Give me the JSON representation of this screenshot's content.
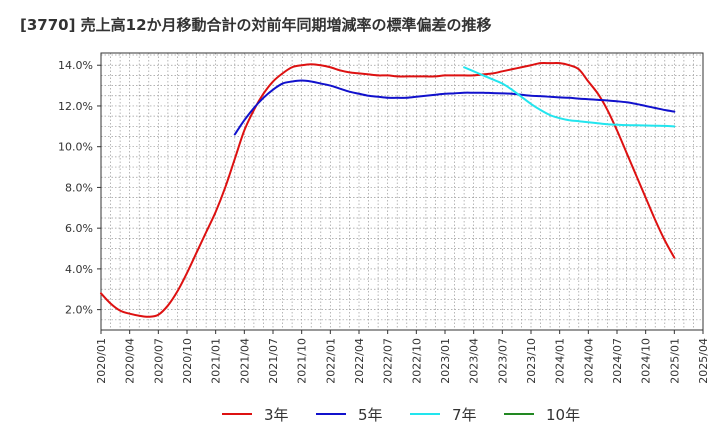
{
  "chart_data": {
    "type": "line",
    "title": "[3770]  売上高12か月移動合計の対前年同期増減率の標準偏差の推移",
    "xlabel": "",
    "ylabel": "",
    "x_range": [
      "2020-01",
      "2025-04"
    ],
    "ylim": [
      1.0,
      14.6
    ],
    "y_ticks": [
      "2.0%",
      "4.0%",
      "6.0%",
      "8.0%",
      "10.0%",
      "12.0%",
      "14.0%"
    ],
    "y_tick_values": [
      2,
      4,
      6,
      8,
      10,
      12,
      14
    ],
    "x_ticks": [
      "2020/01",
      "2020/04",
      "2020/07",
      "2020/10",
      "2021/01",
      "2021/04",
      "2021/07",
      "2021/10",
      "2022/01",
      "2022/04",
      "2022/07",
      "2022/10",
      "2023/01",
      "2023/04",
      "2023/07",
      "2023/10",
      "2024/01",
      "2024/04",
      "2024/07",
      "2024/10",
      "2025/01",
      "2025/04"
    ],
    "grid": true,
    "legend_position": "bottom",
    "series": [
      {
        "name": "3年",
        "color": "#dd1111",
        "points": [
          [
            "2020-01",
            2.8
          ],
          [
            "2020-02",
            2.3
          ],
          [
            "2020-03",
            1.95
          ],
          [
            "2020-04",
            1.8
          ],
          [
            "2020-05",
            1.7
          ],
          [
            "2020-06",
            1.65
          ],
          [
            "2020-07",
            1.75
          ],
          [
            "2020-08",
            2.2
          ],
          [
            "2020-09",
            2.9
          ],
          [
            "2020-10",
            3.8
          ],
          [
            "2020-11",
            4.8
          ],
          [
            "2020-12",
            5.8
          ],
          [
            "2021-01",
            6.8
          ],
          [
            "2021-02",
            8.0
          ],
          [
            "2021-03",
            9.4
          ],
          [
            "2021-04",
            10.8
          ],
          [
            "2021-05",
            11.8
          ],
          [
            "2021-06",
            12.6
          ],
          [
            "2021-07",
            13.2
          ],
          [
            "2021-08",
            13.6
          ],
          [
            "2021-09",
            13.9
          ],
          [
            "2021-10",
            14.0
          ],
          [
            "2021-11",
            14.05
          ],
          [
            "2021-12",
            14.0
          ],
          [
            "2022-01",
            13.9
          ],
          [
            "2022-02",
            13.75
          ],
          [
            "2022-03",
            13.65
          ],
          [
            "2022-04",
            13.6
          ],
          [
            "2022-05",
            13.55
          ],
          [
            "2022-06",
            13.5
          ],
          [
            "2022-07",
            13.5
          ],
          [
            "2022-08",
            13.45
          ],
          [
            "2022-09",
            13.45
          ],
          [
            "2022-10",
            13.45
          ],
          [
            "2022-11",
            13.45
          ],
          [
            "2022-12",
            13.45
          ],
          [
            "2023-01",
            13.5
          ],
          [
            "2023-02",
            13.5
          ],
          [
            "2023-03",
            13.5
          ],
          [
            "2023-04",
            13.5
          ],
          [
            "2023-05",
            13.55
          ],
          [
            "2023-06",
            13.6
          ],
          [
            "2023-07",
            13.7
          ],
          [
            "2023-08",
            13.8
          ],
          [
            "2023-09",
            13.9
          ],
          [
            "2023-10",
            14.0
          ],
          [
            "2023-11",
            14.1
          ],
          [
            "2023-12",
            14.1
          ],
          [
            "2024-01",
            14.1
          ],
          [
            "2024-02",
            14.0
          ],
          [
            "2024-03",
            13.8
          ],
          [
            "2024-04",
            13.2
          ],
          [
            "2024-05",
            12.6
          ],
          [
            "2024-06",
            11.8
          ],
          [
            "2024-07",
            10.8
          ],
          [
            "2024-08",
            9.7
          ],
          [
            "2024-09",
            8.6
          ],
          [
            "2024-10",
            7.5
          ],
          [
            "2024-11",
            6.4
          ],
          [
            "2024-12",
            5.4
          ],
          [
            "2025-01",
            4.55
          ]
        ]
      },
      {
        "name": "5年",
        "color": "#1111cc",
        "points": [
          [
            "2021-03",
            10.6
          ],
          [
            "2021-04",
            11.3
          ],
          [
            "2021-05",
            11.9
          ],
          [
            "2021-06",
            12.4
          ],
          [
            "2021-07",
            12.8
          ],
          [
            "2021-08",
            13.1
          ],
          [
            "2021-09",
            13.2
          ],
          [
            "2021-10",
            13.25
          ],
          [
            "2021-11",
            13.2
          ],
          [
            "2021-12",
            13.1
          ],
          [
            "2022-01",
            13.0
          ],
          [
            "2022-02",
            12.85
          ],
          [
            "2022-03",
            12.7
          ],
          [
            "2022-04",
            12.6
          ],
          [
            "2022-05",
            12.5
          ],
          [
            "2022-06",
            12.45
          ],
          [
            "2022-07",
            12.4
          ],
          [
            "2022-08",
            12.4
          ],
          [
            "2022-09",
            12.4
          ],
          [
            "2022-10",
            12.45
          ],
          [
            "2022-11",
            12.5
          ],
          [
            "2022-12",
            12.55
          ],
          [
            "2023-01",
            12.6
          ],
          [
            "2023-02",
            12.62
          ],
          [
            "2023-03",
            12.65
          ],
          [
            "2023-04",
            12.65
          ],
          [
            "2023-05",
            12.65
          ],
          [
            "2023-06",
            12.63
          ],
          [
            "2023-07",
            12.62
          ],
          [
            "2023-08",
            12.6
          ],
          [
            "2023-09",
            12.55
          ],
          [
            "2023-10",
            12.5
          ],
          [
            "2023-11",
            12.48
          ],
          [
            "2023-12",
            12.45
          ],
          [
            "2024-01",
            12.42
          ],
          [
            "2024-02",
            12.4
          ],
          [
            "2024-03",
            12.36
          ],
          [
            "2024-04",
            12.33
          ],
          [
            "2024-05",
            12.3
          ],
          [
            "2024-06",
            12.27
          ],
          [
            "2024-07",
            12.23
          ],
          [
            "2024-08",
            12.18
          ],
          [
            "2024-09",
            12.1
          ],
          [
            "2024-10",
            12.0
          ],
          [
            "2024-11",
            11.9
          ],
          [
            "2024-12",
            11.8
          ],
          [
            "2025-01",
            11.72
          ]
        ]
      },
      {
        "name": "7年",
        "color": "#22e5ee",
        "points": [
          [
            "2023-03",
            13.9
          ],
          [
            "2023-04",
            13.7
          ],
          [
            "2023-05",
            13.5
          ],
          [
            "2023-06",
            13.3
          ],
          [
            "2023-07",
            13.1
          ],
          [
            "2023-08",
            12.8
          ],
          [
            "2023-09",
            12.45
          ],
          [
            "2023-10",
            12.1
          ],
          [
            "2023-11",
            11.8
          ],
          [
            "2023-12",
            11.55
          ],
          [
            "2024-01",
            11.4
          ],
          [
            "2024-02",
            11.3
          ],
          [
            "2024-03",
            11.25
          ],
          [
            "2024-04",
            11.2
          ],
          [
            "2024-05",
            11.15
          ],
          [
            "2024-06",
            11.1
          ],
          [
            "2024-07",
            11.08
          ],
          [
            "2024-08",
            11.06
          ],
          [
            "2024-09",
            11.05
          ],
          [
            "2024-10",
            11.04
          ],
          [
            "2024-11",
            11.03
          ],
          [
            "2024-12",
            11.02
          ],
          [
            "2025-01",
            11.0
          ]
        ]
      },
      {
        "name": "10年",
        "color": "#228822",
        "points": []
      }
    ]
  }
}
